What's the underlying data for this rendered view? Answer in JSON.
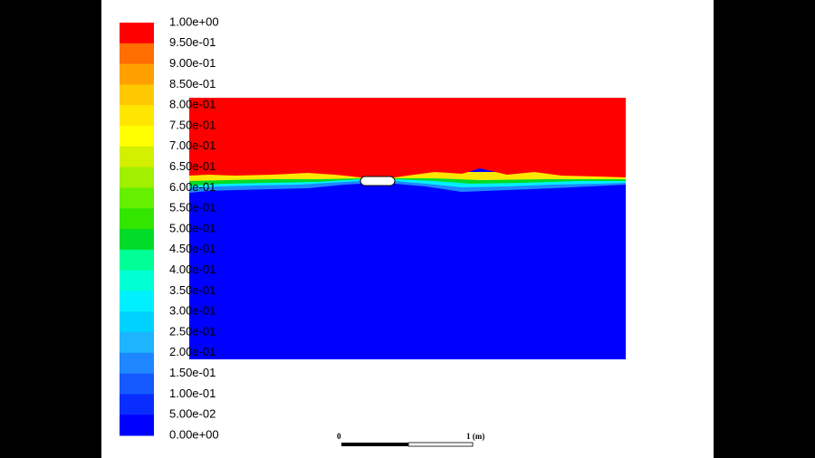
{
  "colorbar": {
    "labels": [
      "1.00e+00",
      "9.50e-01",
      "9.00e-01",
      "8.50e-01",
      "8.00e-01",
      "7.50e-01",
      "7.00e-01",
      "6.50e-01",
      "6.00e-01",
      "5.50e-01",
      "5.00e-01",
      "4.50e-01",
      "4.00e-01",
      "3.50e-01",
      "3.00e-01",
      "2.50e-01",
      "2.00e-01",
      "1.50e-01",
      "1.00e-01",
      "5.00e-02",
      "0.00e+00"
    ],
    "colors": [
      "#ff0000",
      "#ff6e00",
      "#ffa000",
      "#ffc800",
      "#ffe600",
      "#ffff00",
      "#d2f000",
      "#a0f000",
      "#64f000",
      "#32e600",
      "#00dc28",
      "#00ff96",
      "#00ffd2",
      "#00f0ff",
      "#00d2ff",
      "#1eb4ff",
      "#1e87ff",
      "#145aff",
      "#0a2dff",
      "#0000ff"
    ]
  },
  "scale_bar": {
    "start_label": "0",
    "end_label": "1 (m)"
  }
}
